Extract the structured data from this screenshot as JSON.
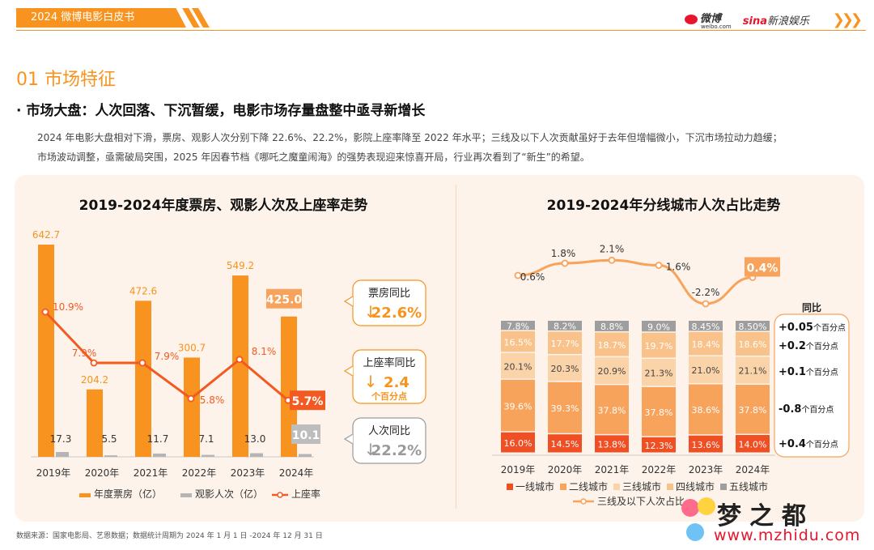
{
  "header": {
    "tag": "2024 微博电影白皮书",
    "logo_weibo": "微博",
    "logo_weibo_sub": "weibo.com",
    "logo_sina_a": "sina",
    "logo_sina_b": "新浪娱乐",
    "chevrons": "❯❯❯"
  },
  "section": {
    "title": "01 市场特征"
  },
  "headline": "· 市场大盘：人次回落、下沉暂缓，电影市场存量盘整中亟寻新增长",
  "paragraph": [
    "2024 年电影大盘相对下滑，票房、观影人次分别下降 22.6%、22.2%，影院上座率降至 2022 年水平；三线及以下人次贡献虽好于去年但增幅微小，下沉市场拉动力趋缓；",
    "市场波动调整，亟需破局突围，2025 年因春节档《哪吒之魔童闹海》的强势表现迎来惊喜开局，行业再次看到了“新生”的希望。"
  ],
  "colors": {
    "accent": "#f7931e",
    "bar_grey": "#b5b5b5",
    "line": "#f25a22",
    "city1": "#f04e23",
    "city2": "#f7a35c",
    "city3": "#fbd3a8",
    "city4": "#f9c28a",
    "city5": "#9e9e9e"
  },
  "chart_data": [
    {
      "type": "bar",
      "title": "2019-2024年度票房、观影人次及上座率走势",
      "categories": [
        "2019年",
        "2020年",
        "2021年",
        "2022年",
        "2023年",
        "2024年"
      ],
      "series": [
        {
          "name": "年度票房（亿）",
          "values": [
            642.7,
            204.2,
            472.6,
            300.7,
            549.2,
            425.0
          ]
        },
        {
          "name": "观影人次（亿）",
          "values": [
            17.3,
            5.5,
            11.7,
            7.1,
            13.0,
            10.1
          ]
        },
        {
          "name": "上座率",
          "type": "line",
          "values": [
            10.9,
            7.9,
            7.9,
            5.8,
            8.1,
            5.7
          ],
          "labels": [
            "10.9%",
            "7.9%",
            "7.9%",
            "5.8%",
            "8.1%",
            "5.7%"
          ]
        }
      ],
      "bar_labels": [
        "642.7",
        "204.2",
        "472.6",
        "300.7",
        "549.2",
        "425.0"
      ],
      "people_labels": [
        "17.3",
        "5.5",
        "11.7",
        "7.1",
        "13.0",
        "10.1"
      ],
      "callouts": [
        {
          "title": "票房同比",
          "value": "22.6%",
          "arrow": "↓"
        },
        {
          "title": "上座率同比",
          "value": "2.4",
          "unit": "个百分点",
          "arrow": "↓"
        },
        {
          "title": "人次同比",
          "value": "22.2%",
          "arrow": "↓"
        }
      ]
    },
    {
      "type": "bar",
      "stacked": true,
      "title": "2019-2024年分线城市人次占比走势",
      "categories": [
        "2019年",
        "2020年",
        "2021年",
        "2022年",
        "2023年",
        "2024年"
      ],
      "series": [
        {
          "name": "一线城市",
          "values": [
            16.0,
            14.5,
            13.8,
            12.3,
            13.6,
            14.0
          ],
          "labels": [
            "16.0%",
            "14.5%",
            "13.8%",
            "12.3%",
            "13.6%",
            "14.0%"
          ]
        },
        {
          "name": "二线城市",
          "values": [
            39.6,
            39.3,
            37.8,
            37.8,
            38.6,
            37.8
          ],
          "labels": [
            "39.6%",
            "39.3%",
            "37.8%",
            "37.8%",
            "38.6%",
            "37.8%"
          ]
        },
        {
          "name": "三线城市",
          "values": [
            20.1,
            20.3,
            20.9,
            21.3,
            21.0,
            21.1
          ],
          "labels": [
            "20.1%",
            "20.3%",
            "20.9%",
            "21.3%",
            "21.0%",
            "21.1%"
          ]
        },
        {
          "name": "四线城市",
          "values": [
            16.5,
            17.7,
            18.7,
            19.7,
            18.4,
            18.6
          ],
          "labels": [
            "16.5%",
            "17.7%",
            "18.7%",
            "19.7%",
            "18.4%",
            "18.6%"
          ]
        },
        {
          "name": "五线城市",
          "values": [
            7.8,
            8.2,
            8.8,
            9.0,
            8.45,
            8.5
          ],
          "labels": [
            "7.8%",
            "8.2%",
            "8.8%",
            "9.0%",
            "8.45%",
            "8.50%"
          ]
        },
        {
          "name": "三线及以下人次占比",
          "type": "line",
          "values": [
            0.6,
            1.8,
            2.1,
            1.6,
            -2.2,
            0.4
          ],
          "labels": [
            "0.6%",
            "1.8%",
            "2.1%",
            "1.6%",
            "-2.2%",
            "0.4%"
          ]
        }
      ],
      "yoy": {
        "title": "同比",
        "items": [
          {
            "value": "+0.05",
            "unit": "个百分点"
          },
          {
            "value": "+0.2",
            "unit": "个百分点"
          },
          {
            "value": "+0.1",
            "unit": "个百分点"
          },
          {
            "value": "-0.8",
            "unit": "个百分点"
          },
          {
            "value": "+0.4",
            "unit": "个百分点"
          }
        ]
      }
    }
  ],
  "footer": {
    "source": "数据来源：国家电影局、艺恩数据；数据统计周期为 2024 年 1 月 1 日 -2024 年 12 月 31 日"
  },
  "watermark": {
    "text": "梦之都",
    "url": "www.mzhidu.com"
  }
}
